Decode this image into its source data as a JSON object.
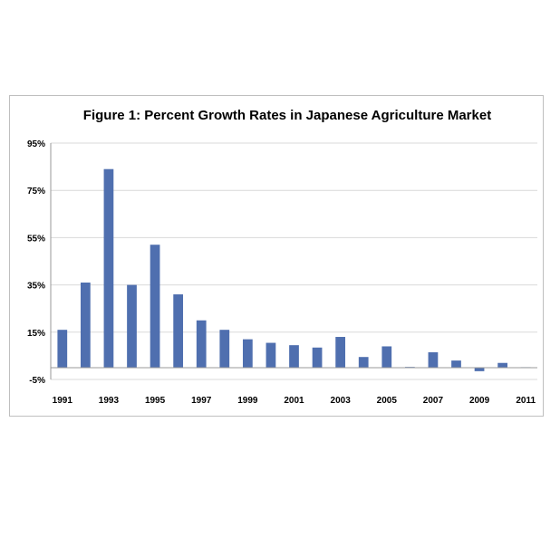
{
  "chart_data": {
    "type": "bar",
    "title": "Figure 1: Percent Growth Rates in Japanese Agriculture Market",
    "xlabel": "",
    "ylabel": "",
    "categories": [
      "1991",
      "1992",
      "1993",
      "1994",
      "1995",
      "1996",
      "1997",
      "1998",
      "1999",
      "2000",
      "2001",
      "2002",
      "2003",
      "2004",
      "2005",
      "2006",
      "2007",
      "2008",
      "2009",
      "2010",
      "2011"
    ],
    "x_tick_labels": [
      "1991",
      "1993",
      "1995",
      "1997",
      "1999",
      "2001",
      "2003",
      "2005",
      "2007",
      "2009",
      "2011"
    ],
    "series": [
      {
        "values": [
          16,
          36,
          84,
          35,
          52,
          31,
          20,
          16,
          12,
          10.5,
          9.5,
          8.5,
          13,
          4.5,
          9,
          0.3,
          6.5,
          3,
          -1.5,
          2,
          0.2
        ]
      }
    ],
    "y_ticks": [
      "95%",
      "75%",
      "55%",
      "35%",
      "15%",
      "-5%"
    ],
    "y_tick_values": [
      95,
      75,
      55,
      35,
      15,
      -5
    ],
    "ylim": [
      -5,
      95
    ],
    "grid": true,
    "legend": "none",
    "bar_color": "#4f6faf",
    "grid_color": "#d9d9d9",
    "axis_color": "#999999"
  }
}
